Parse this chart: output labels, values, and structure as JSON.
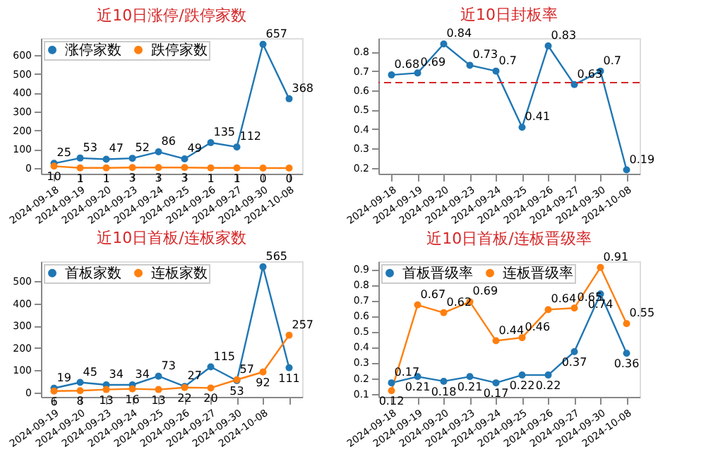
{
  "chart_data": [
    {
      "type": "line",
      "title": "近10日涨停/跌停家数",
      "categories": [
        "2024-09-18",
        "2024-09-19",
        "2024-09-20",
        "2024-09-23",
        "2024-09-24",
        "2024-09-25",
        "2024-09-26",
        "2024-09-27",
        "2024-09-30",
        "2024-10-08"
      ],
      "series": [
        {
          "name": "涨停家数",
          "color": "#1f77b4",
          "values": [
            25,
            53,
            47,
            52,
            86,
            49,
            135,
            112,
            657,
            368
          ]
        },
        {
          "name": "跌停家数",
          "color": "#ff7f0e",
          "values": [
            10,
            1,
            1,
            3,
            3,
            3,
            1,
            1,
            0,
            0
          ]
        }
      ],
      "ylim": [
        -30,
        690
      ],
      "yticks": [
        0,
        100,
        200,
        300,
        400,
        500,
        600
      ],
      "data_labels": true,
      "legend": "top left",
      "marker": "circle",
      "grid": false
    },
    {
      "type": "line",
      "title": "近10日封板率",
      "categories": [
        "2024-09-18",
        "2024-09-19",
        "2024-09-20",
        "2024-09-23",
        "2024-09-24",
        "2024-09-25",
        "2024-09-26",
        "2024-09-27",
        "2024-09-30",
        "2024-10-08"
      ],
      "series": [
        {
          "color": "#1f77b4",
          "values": [
            0.68,
            0.69,
            0.84,
            0.73,
            0.7,
            0.41,
            0.83,
            0.63,
            0.7,
            0.19
          ]
        }
      ],
      "ylim": [
        0.17,
        0.87
      ],
      "yticks": [
        0.2,
        0.3,
        0.4,
        0.5,
        0.6,
        0.7,
        0.8
      ],
      "data_labels": true,
      "marker": "circle",
      "grid": false,
      "ref_lines": [
        {
          "axis": "y",
          "value": 0.64,
          "color": "#d62728",
          "line_style": "dashed"
        }
      ]
    },
    {
      "type": "line",
      "title": "近10日首板/连板家数",
      "categories": [
        "2024-09-19",
        "2024-09-20",
        "2024-09-23",
        "2024-09-24",
        "2024-09-25",
        "2024-09-26",
        "2024-09-27",
        "2024-09-30",
        "2024-10-08",
        null
      ],
      "series": [
        {
          "name": "首板家数",
          "color": "#1f77b4",
          "values": [
            19,
            45,
            34,
            34,
            73,
            27,
            115,
            53,
            565,
            111
          ]
        },
        {
          "name": "连板家数",
          "color": "#ff7f0e",
          "values": [
            6,
            8,
            13,
            16,
            13,
            22,
            20,
            57,
            92,
            257
          ]
        }
      ],
      "ylim": [
        -20,
        590
      ],
      "yticks": [
        0,
        100,
        200,
        300,
        400,
        500
      ],
      "data_labels": true,
      "legend": "top left",
      "marker": "circle",
      "grid": false
    },
    {
      "type": "line",
      "title": "近10日首板/连板晋级率",
      "categories": [
        "2024-09-18",
        "2024-09-19",
        "2024-09-20",
        "2024-09-23",
        "2024-09-24",
        "2024-09-25",
        "2024-09-26",
        "2024-09-27",
        "2024-09-30",
        "2024-10-08"
      ],
      "series": [
        {
          "name": "首板晋级率",
          "color": "#1f77b4",
          "values": [
            0.17,
            0.21,
            0.18,
            0.21,
            0.17,
            0.22,
            0.22,
            0.37,
            0.74,
            0.36
          ]
        },
        {
          "name": "连板晋级率",
          "color": "#ff7f0e",
          "values": [
            0.12,
            0.67,
            0.62,
            0.69,
            0.44,
            0.46,
            0.64,
            0.65,
            0.91,
            0.55
          ]
        }
      ],
      "ylim": [
        0.08,
        0.95
      ],
      "yticks": [
        0.1,
        0.2,
        0.3,
        0.4,
        0.5,
        0.6,
        0.7,
        0.8,
        0.9
      ],
      "data_labels": true,
      "legend": "top left",
      "marker": "circle",
      "grid": false
    }
  ]
}
